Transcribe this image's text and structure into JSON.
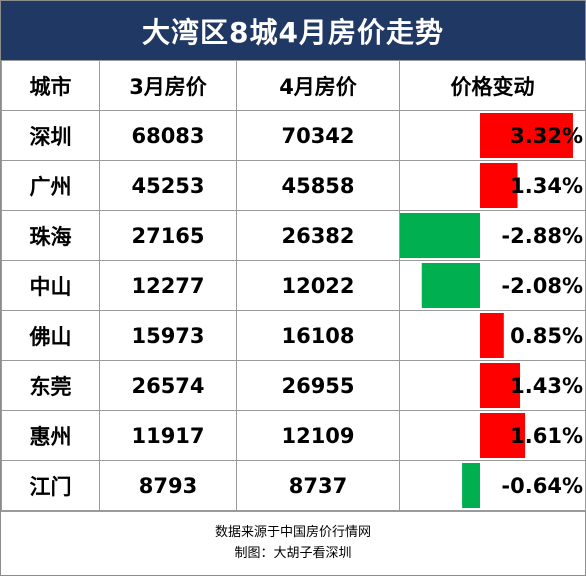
{
  "title": "大湾区8城4月房价走势",
  "headers": {
    "city": "城市",
    "march": "3月房价",
    "april": "4月房价",
    "change": "价格变动"
  },
  "colors": {
    "header_bg": "#203864",
    "positive": "#ff0000",
    "negative": "#00b050"
  },
  "chart_data": {
    "type": "table",
    "title": "大湾区8城4月房价走势",
    "columns": [
      "城市",
      "3月房价",
      "4月房价",
      "价格变动"
    ],
    "rows": [
      {
        "city": "深圳",
        "march": "68083",
        "april": "70342",
        "change": 3.32,
        "change_label": "3.32%"
      },
      {
        "city": "广州",
        "march": "45253",
        "april": "45858",
        "change": 1.34,
        "change_label": "1.34%"
      },
      {
        "city": "珠海",
        "march": "27165",
        "april": "26382",
        "change": -2.88,
        "change_label": "-2.88%"
      },
      {
        "city": "中山",
        "march": "12277",
        "april": "12022",
        "change": -2.08,
        "change_label": "-2.08%"
      },
      {
        "city": "佛山",
        "march": "15973",
        "april": "16108",
        "change": 0.85,
        "change_label": "0.85%"
      },
      {
        "city": "东莞",
        "march": "26574",
        "april": "26955",
        "change": 1.43,
        "change_label": "1.43%"
      },
      {
        "city": "惠州",
        "march": "11917",
        "april": "12109",
        "change": 1.61,
        "change_label": "1.61%"
      },
      {
        "city": "江门",
        "march": "8793",
        "april": "8737",
        "change": -0.64,
        "change_label": "-0.64%"
      }
    ]
  },
  "footer": {
    "source": "数据来源于中国房价行情网",
    "credit": "制图：大胡子看深圳"
  }
}
